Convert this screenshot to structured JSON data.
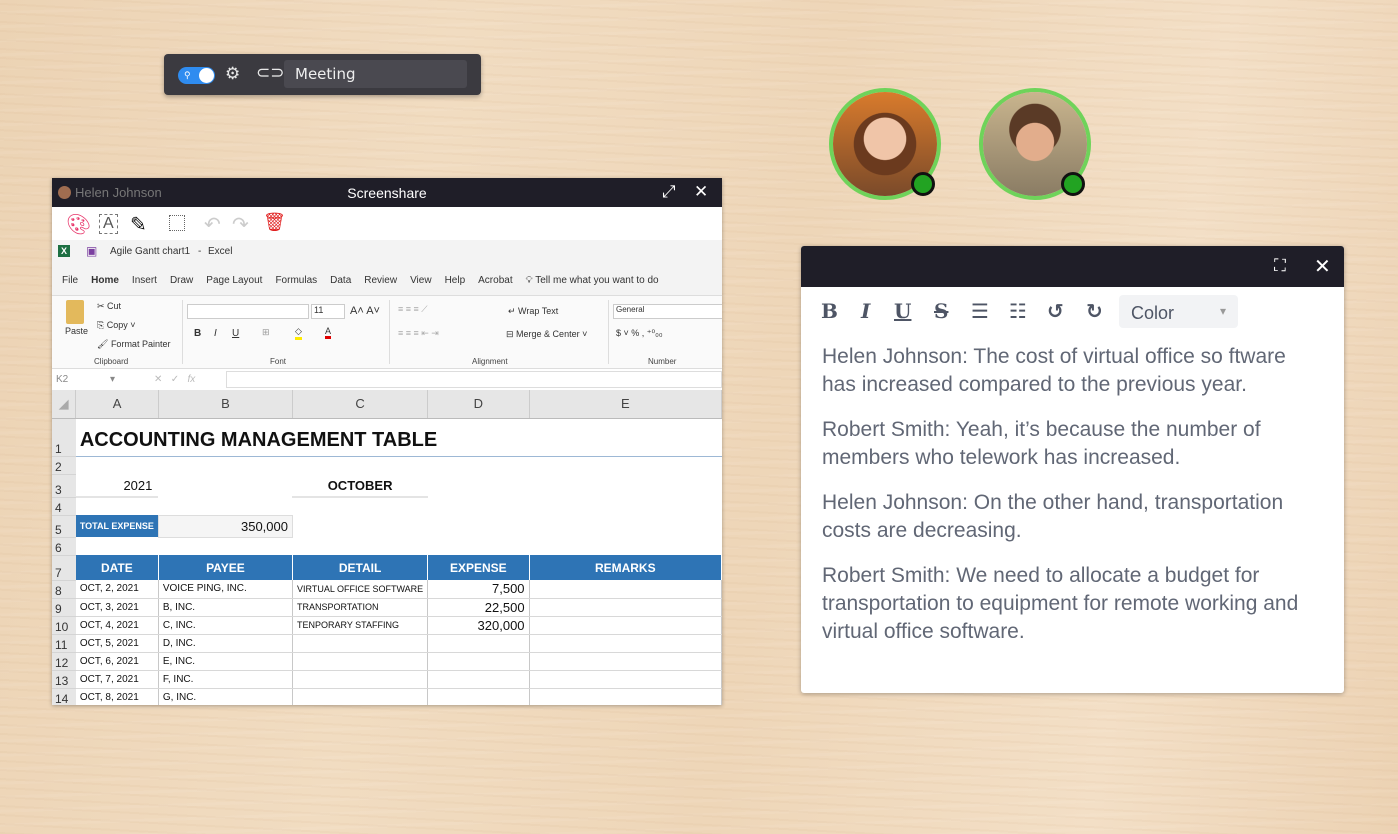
{
  "meeting_toolbar": {
    "room_name": "Meeting",
    "icons": [
      "toggle-switch",
      "gear-icon",
      "link-icon"
    ]
  },
  "screenshare": {
    "title": "Screenshare",
    "presenter": "Helen Johnson",
    "excel": {
      "file_title": "Agile Gantt chart1",
      "app": "Excel",
      "menu": [
        "File",
        "Home",
        "Insert",
        "Draw",
        "Page Layout",
        "Formulas",
        "Data",
        "Review",
        "View",
        "Help",
        "Acrobat"
      ],
      "tell_me": "Tell me what you want to do",
      "ribbon": {
        "paste": "Paste",
        "cut": "Cut",
        "copy": "Copy",
        "format_painter": "Format Painter",
        "clipboard": "Clipboard",
        "font_size": "11",
        "font": "Font",
        "wrap_text": "Wrap Text",
        "merge_center": "Merge & Center",
        "alignment": "Alignment",
        "number_format": "General",
        "number": "Number",
        "bold": "B",
        "italic": "I",
        "underline": "U"
      },
      "name_box": "K2",
      "columns": [
        "A",
        "B",
        "C",
        "D",
        "E"
      ],
      "title": "ACCOUNTING MANAGEMENT TABLE",
      "year": "2021",
      "month": "OCTOBER",
      "total_label": "TOTAL EXPENSE",
      "total_value": "350,000",
      "headers": [
        "DATE",
        "PAYEE",
        "DETAIL",
        "EXPENSE",
        "REMARKS"
      ],
      "rows": [
        [
          "OCT, 2, 2021",
          "VOICE PING, INC.",
          "VIRTUAL OFFICE SOFTWARE",
          "7,500",
          ""
        ],
        [
          "OCT, 3, 2021",
          "B, INC.",
          "TRANSPORTATION",
          "22,500",
          ""
        ],
        [
          "OCT, 4, 2021",
          "C, INC.",
          "TENPORARY STAFFING",
          "320,000",
          ""
        ],
        [
          "OCT, 5, 2021",
          "D, INC.",
          "",
          "",
          ""
        ],
        [
          "OCT, 6, 2021",
          "E, INC.",
          "",
          "",
          ""
        ],
        [
          "OCT, 7, 2021",
          "F, INC.",
          "",
          "",
          ""
        ],
        [
          "OCT, 8, 2021",
          "G, INC.",
          "",
          "",
          ""
        ]
      ],
      "accent": "#2e74b5"
    }
  },
  "participants": [
    {
      "status": "online",
      "status_color": "#22a322"
    },
    {
      "status": "online",
      "status_color": "#22a322"
    }
  ],
  "chat": {
    "toolbar": {
      "bold": "B",
      "italic": "I",
      "underline": "U",
      "strike": "S",
      "color_select": "Color"
    },
    "messages": [
      "Helen Johnson: The cost of virtual office so ftware has increased compared to the previous year.",
      "Robert Smith:  Yeah, it’s because the number of members who telework has increased.",
      "Helen Johnson: On the other hand, transportation costs are decreasing.",
      "Robert Smith:  We need to allocate a budget for transportation to equipment for remote working and virtual office software."
    ]
  }
}
